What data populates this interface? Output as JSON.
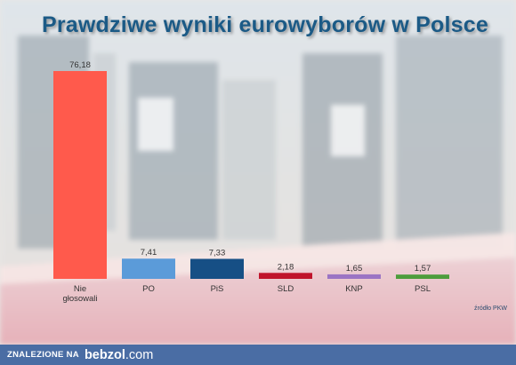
{
  "chart_data": {
    "type": "bar",
    "title": "Prawdziwe wyniki eurowyborów w Polsce",
    "categories": [
      "Nie\ngłosowali",
      "PO",
      "PiS",
      "SLD",
      "KNP",
      "PSL"
    ],
    "values": [
      76.18,
      7.41,
      7.33,
      2.18,
      1.65,
      1.57
    ],
    "value_labels": [
      "76,18",
      "7,41",
      "7,33",
      "2,18",
      "1,65",
      "1,57"
    ],
    "colors": [
      "#ff5a4c",
      "#5b9bd9",
      "#164f85",
      "#c0142b",
      "#9b74c4",
      "#4d9d3c"
    ],
    "xlabel": "",
    "ylabel": "",
    "ylim": [
      0,
      80
    ],
    "grid": false,
    "legend": "none",
    "source": "źródło PKW"
  },
  "footer": {
    "label": "ZNALEZIONE NA",
    "brand": "bebzol",
    "tld": ".com"
  }
}
